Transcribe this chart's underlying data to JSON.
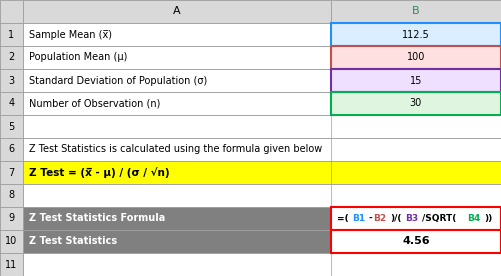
{
  "col_header_A": "A",
  "col_header_B": "B",
  "rows": [
    {
      "num": "1",
      "label": "Sample Mean (x̅)",
      "value": "112.5",
      "bg_b": "#dbeeff",
      "border_b": "#1e90ff"
    },
    {
      "num": "2",
      "label": "Population Mean (μ)",
      "value": "100",
      "bg_b": "#ffe0e0",
      "border_b": "#c0504d"
    },
    {
      "num": "3",
      "label": "Standard Deviation of Population (σ)",
      "value": "15",
      "bg_b": "#f0e0ff",
      "border_b": "#7030a0"
    },
    {
      "num": "4",
      "label": "Number of Observation (n)",
      "value": "30",
      "bg_b": "#e0f5e0",
      "border_b": "#00b050"
    }
  ],
  "row6_text": "Z Test Statistics is calculated using the formula given below",
  "row7_formula": "Z Test = (x̅ - μ) / (σ / √n)",
  "row7_bg": "#ffff00",
  "row9_label": "Z Test Statistics Formula",
  "row9_formula_parts": [
    {
      "text": "=(",
      "color": "#000000"
    },
    {
      "text": "B1",
      "color": "#1e90ff"
    },
    {
      "text": "-",
      "color": "#000000"
    },
    {
      "text": "B2",
      "color": "#c0504d"
    },
    {
      "text": ")/(",
      "color": "#000000"
    },
    {
      "text": "B3",
      "color": "#7030a0"
    },
    {
      "text": "/SQRT(",
      "color": "#000000"
    },
    {
      "text": "B4",
      "color": "#00b050"
    },
    {
      "text": "))",
      "color": "#000000"
    }
  ],
  "row10_label": "Z Test Statistics",
  "row10_value": "4.56",
  "gray_bg": "#808080",
  "gray_text": "#ffffff",
  "header_bg": "#d9d9d9",
  "row_num_bg": "#d9d9d9",
  "border_red": "#ff0000",
  "grid_color": "#a0a0a0",
  "fig_bg": "#ffffff"
}
